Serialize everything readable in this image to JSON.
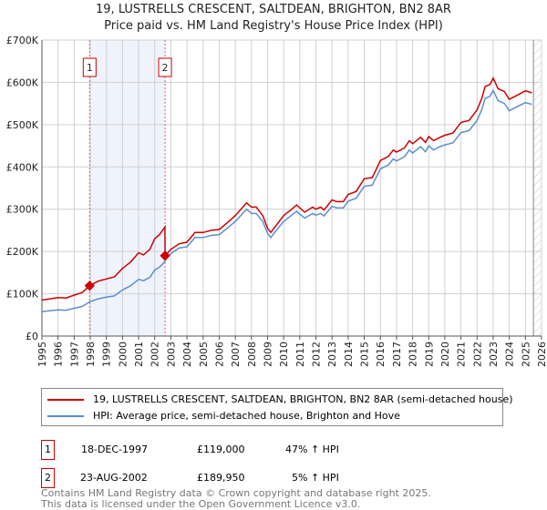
{
  "chart_data": {
    "type": "line",
    "title": "19, LUSTRELLS CRESCENT, SALTDEAN, BRIGHTON, BN2 8AR",
    "subtitle": "Price paid vs. HM Land Registry's House Price Index (HPI)",
    "xlim": [
      1995,
      2026
    ],
    "ylim": [
      0,
      700000
    ],
    "x_ticks": [
      "1995",
      "1996",
      "1997",
      "1998",
      "1999",
      "2000",
      "2001",
      "2002",
      "2003",
      "2004",
      "2005",
      "2006",
      "2007",
      "2008",
      "2009",
      "2010",
      "2011",
      "2012",
      "2013",
      "2014",
      "2015",
      "2016",
      "2017",
      "2018",
      "2019",
      "2020",
      "2021",
      "2022",
      "2023",
      "2024",
      "2025",
      "2026"
    ],
    "y_ticks": [
      {
        "v": 0,
        "label": "£0"
      },
      {
        "v": 100000,
        "label": "£100K"
      },
      {
        "v": 200000,
        "label": "£200K"
      },
      {
        "v": 300000,
        "label": "£300K"
      },
      {
        "v": 400000,
        "label": "£400K"
      },
      {
        "v": 500000,
        "label": "£500K"
      },
      {
        "v": 600000,
        "label": "£600K"
      },
      {
        "v": 700000,
        "label": "£700K"
      }
    ],
    "grid": true,
    "x": [
      1995,
      1996,
      1996.5,
      1997,
      1997.5,
      1997.96,
      1998.5,
      1999,
      1999.5,
      2000,
      2000.5,
      2001,
      2001.3,
      2001.7,
      2002,
      2002.3,
      2002.63,
      2002.64,
      2003,
      2003.5,
      2004,
      2004.5,
      2005,
      2005.5,
      2006,
      2006.5,
      2007,
      2007.7,
      2008,
      2008.3,
      2008.7,
      2009,
      2009.2,
      2009.5,
      2010,
      2010.5,
      2010.8,
      2011.3,
      2011.8,
      2012,
      2012.3,
      2012.5,
      2013,
      2013.3,
      2013.7,
      2014,
      2014.5,
      2015,
      2015.5,
      2016,
      2016.5,
      2016.8,
      2017,
      2017.5,
      2017.8,
      2018,
      2018.5,
      2018.8,
      2019,
      2019.3,
      2019.7,
      2020,
      2020.5,
      2021,
      2021.5,
      2022,
      2022.3,
      2022.5,
      2022.8,
      2023,
      2023.3,
      2023.7,
      2024,
      2024.5,
      2025,
      2025.4
    ],
    "series": [
      {
        "name": "19, LUSTRELLS CRESCENT, SALTDEAN, BRIGHTON, BN2 8AR (semi-detached house)",
        "color": "#cc0000",
        "values": [
          85,
          91,
          90,
          97,
          103,
          119,
          130,
          135,
          140,
          160,
          175,
          197,
          192,
          205,
          230,
          240,
          258,
          190,
          205,
          218,
          222,
          245,
          245,
          250,
          252,
          268,
          285,
          315,
          305,
          305,
          285,
          255,
          245,
          260,
          285,
          300,
          310,
          293,
          305,
          300,
          305,
          298,
          322,
          318,
          318,
          335,
          342,
          372,
          375,
          415,
          425,
          440,
          435,
          445,
          462,
          455,
          470,
          458,
          472,
          462,
          470,
          475,
          480,
          505,
          510,
          535,
          563,
          590,
          595,
          610,
          585,
          578,
          560,
          570,
          580,
          575
        ]
      },
      {
        "name": "HPI: Average price, semi-detached house, Brighton and Hove",
        "color": "#5b8fd0",
        "values": [
          58,
          62,
          61,
          66,
          70,
          81,
          88,
          92,
          95,
          109,
          119,
          134,
          131,
          139,
          156,
          163,
          176,
          181,
          195,
          208,
          211,
          233,
          233,
          238,
          240,
          255,
          271,
          300,
          290,
          290,
          271,
          243,
          233,
          248,
          271,
          286,
          295,
          279,
          290,
          286,
          290,
          284,
          307,
          303,
          303,
          319,
          326,
          354,
          357,
          395,
          405,
          419,
          414,
          424,
          440,
          433,
          448,
          436,
          450,
          440,
          448,
          452,
          457,
          481,
          486,
          510,
          536,
          562,
          567,
          581,
          557,
          550,
          533,
          543,
          552,
          548
        ]
      }
    ],
    "value_unit_multiplier": 1000,
    "sales": [
      {
        "label": "1",
        "x": 1997.96,
        "date": "18-DEC-1997",
        "price": "£119,000",
        "value": 119000,
        "hpi": "47% ↑ HPI"
      },
      {
        "label": "2",
        "x": 2002.64,
        "date": "23-AUG-2002",
        "price": "£189,950",
        "value": 189950,
        "hpi": "5% ↑ HPI"
      }
    ],
    "forecast_start": 2025.5,
    "legend_position": "bottom"
  },
  "footer": [
    "Contains HM Land Registry data © Crown copyright and database right 2025.",
    "This data is licensed under the Open Government Licence v3.0."
  ]
}
